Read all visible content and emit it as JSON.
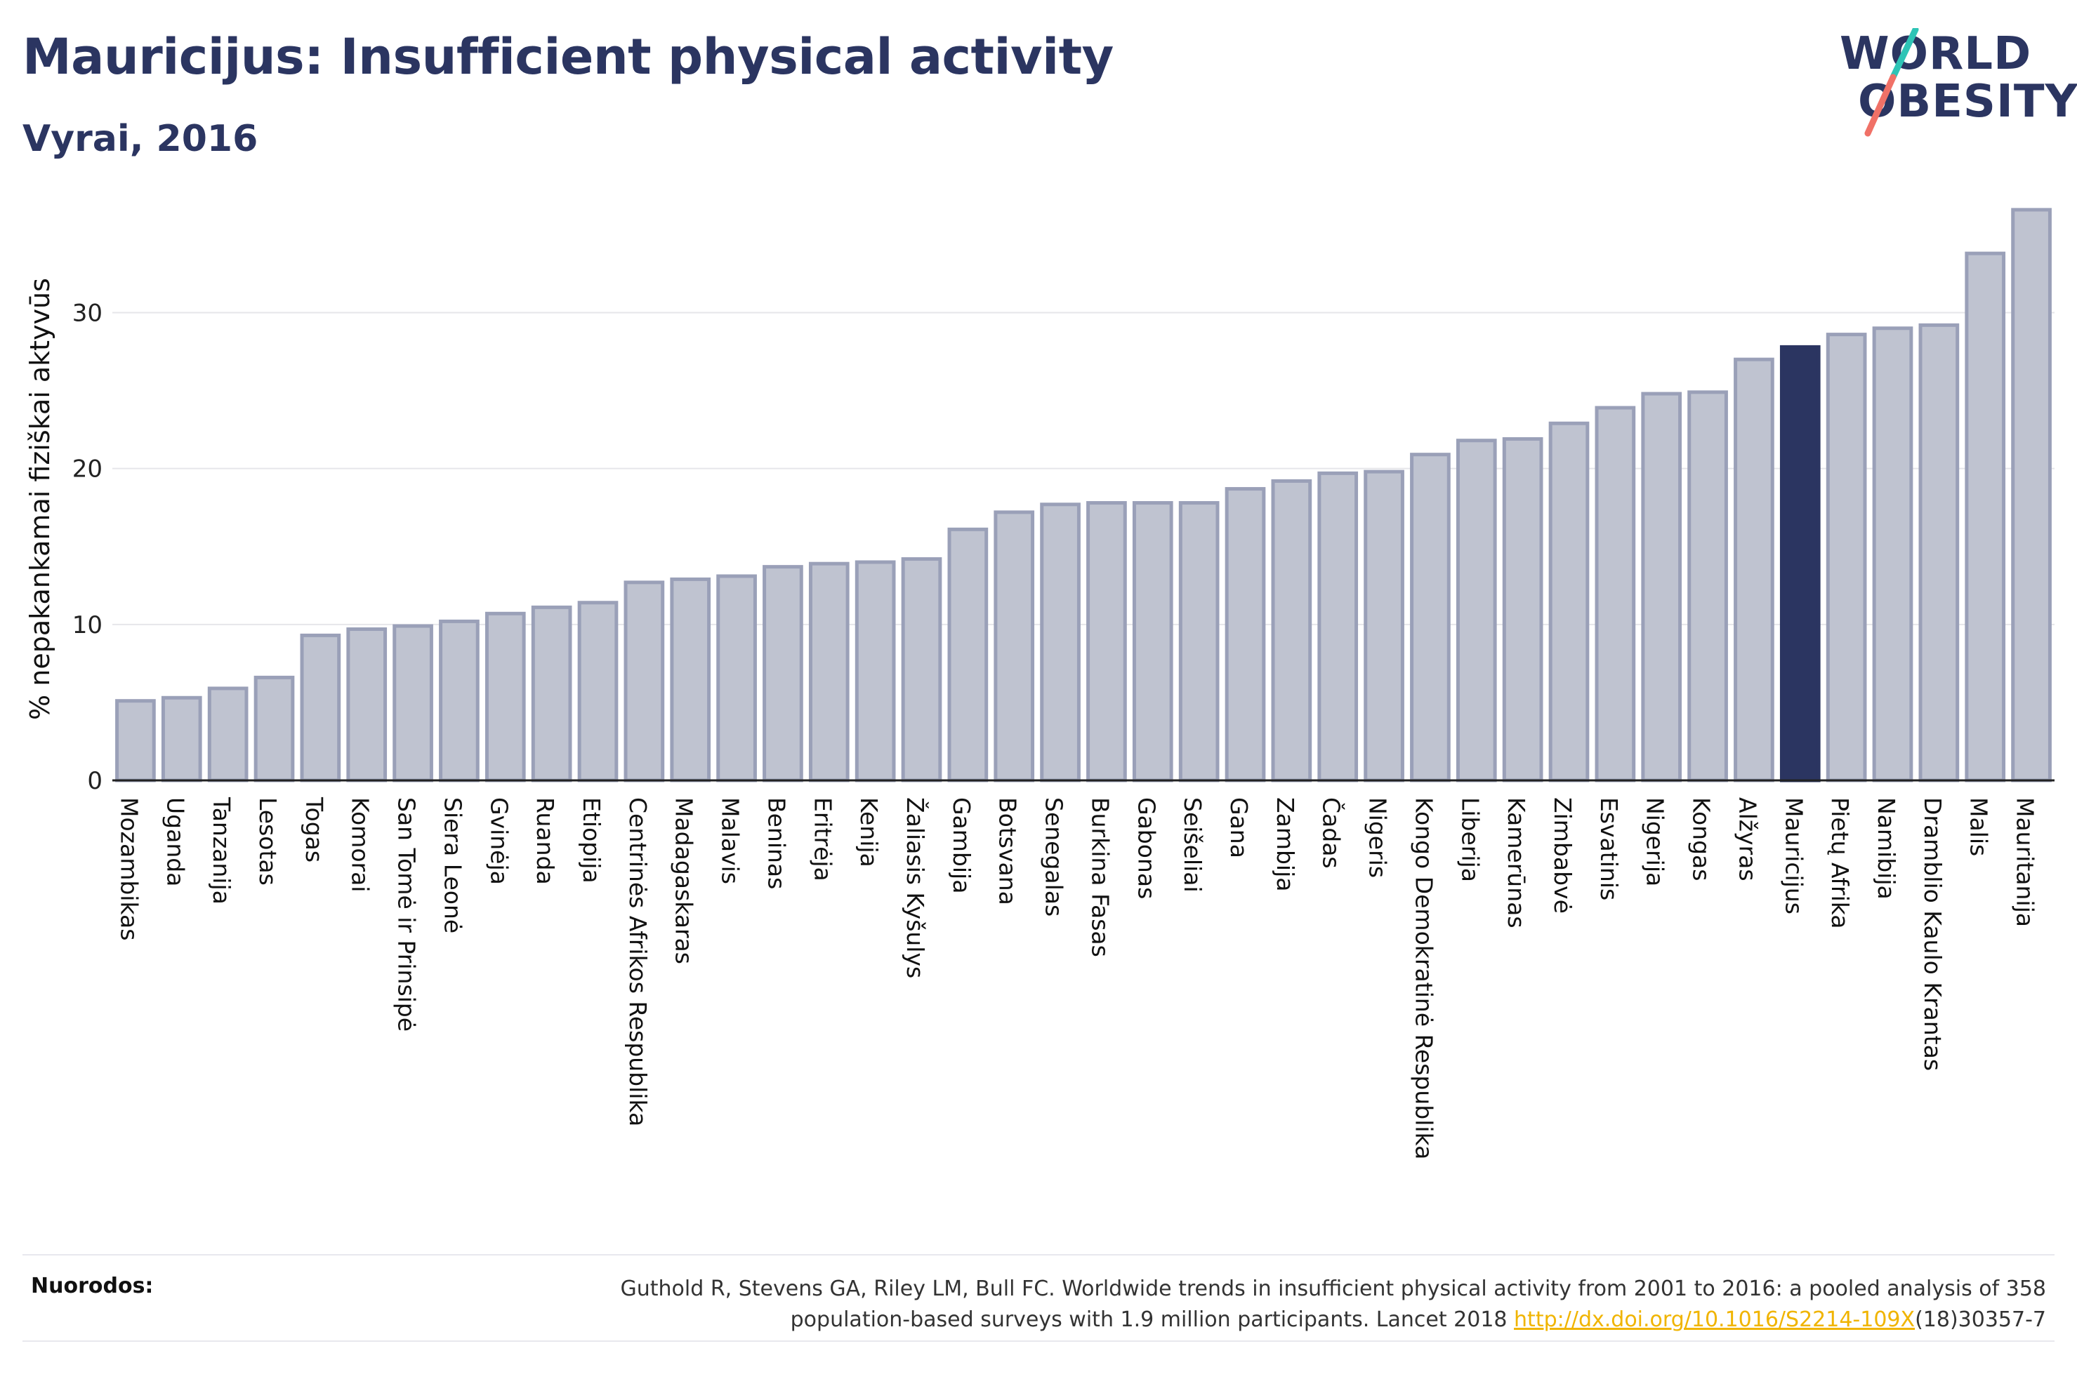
{
  "header": {
    "title": "Mauricijus: Insufficient physical activity",
    "subtitle": "Vyrai, 2016"
  },
  "logo": {
    "line1": "WORLD",
    "line2": "OBESITY",
    "slash_colors": [
      "#2ec4b6",
      "#f07167"
    ]
  },
  "colors": {
    "bar_fill": "#bfc3d0",
    "bar_stroke": "#9aa0b8",
    "highlight": "#2b3561",
    "grid": "#e6e6ea",
    "text": "#2b3561"
  },
  "chart_data": {
    "type": "bar",
    "ylabel": "% nepakankamai fiziškai aktyvūs",
    "ylim": [
      0,
      37
    ],
    "yticks": [
      0,
      10,
      20,
      30
    ],
    "grid": true,
    "highlight": "Mauricijus",
    "categories": [
      "Mozambikas",
      "Uganda",
      "Tanzanija",
      "Lesotas",
      "Togas",
      "Komorai",
      "San Tomė ir Prinsipė",
      "Siera Leonė",
      "Gvinėja",
      "Ruanda",
      "Etiopija",
      "Centrinės Afrikos Respublika",
      "Madagaskaras",
      "Malavis",
      "Beninas",
      "Eritrėja",
      "Kenija",
      "Žaliasis Kyšulys",
      "Gambija",
      "Botsvana",
      "Senegalas",
      "Burkina Fasas",
      "Gabonas",
      "Seišeliai",
      "Gana",
      "Zambija",
      "Čadas",
      "Nigeris",
      "Kongo Demokratinė Respublika",
      "Liberija",
      "Kamerūnas",
      "Zimbabvė",
      "Esvatinis",
      "Nigerija",
      "Kongas",
      "Alžyras",
      "Mauricijus",
      "Pietų Afrika",
      "Namibija",
      "Dramblio Kaulo Krantas",
      "Malis",
      "Mauritanija"
    ],
    "values": [
      5.1,
      5.3,
      5.9,
      6.6,
      9.3,
      9.7,
      9.9,
      10.2,
      10.7,
      11.1,
      11.4,
      12.7,
      12.9,
      13.1,
      13.7,
      13.9,
      14.0,
      14.2,
      16.1,
      17.2,
      17.7,
      17.8,
      17.8,
      17.8,
      18.7,
      19.2,
      19.7,
      19.8,
      20.9,
      21.8,
      21.9,
      22.9,
      23.9,
      24.8,
      24.9,
      27.0,
      27.8,
      28.6,
      29.0,
      29.2,
      33.8,
      36.6
    ]
  },
  "references": {
    "label": "Nuorodos:",
    "line1": "Guthold R, Stevens GA, Riley LM, Bull FC. Worldwide trends in insufficient physical activity from 2001 to 2016: a pooled analysis of 358",
    "line2_prefix": "population-based surveys with 1.9 million participants. Lancet 2018 ",
    "link_text": "http://dx.doi.org/10.1016/S2214-109X",
    "line2_suffix": "(18)30357-7"
  }
}
